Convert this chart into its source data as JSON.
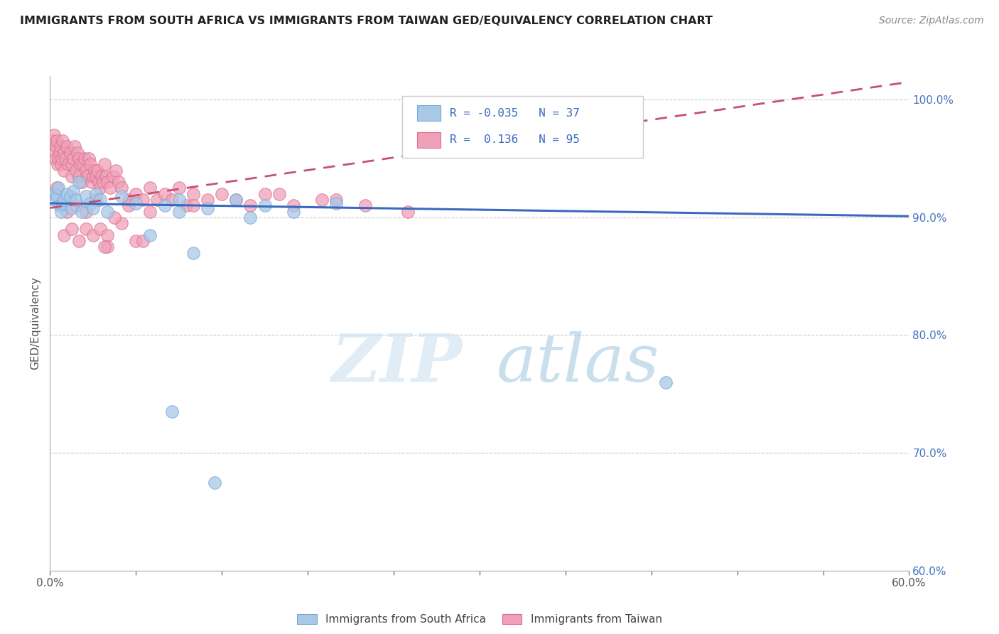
{
  "title": "IMMIGRANTS FROM SOUTH AFRICA VS IMMIGRANTS FROM TAIWAN GED/EQUIVALENCY CORRELATION CHART",
  "source": "Source: ZipAtlas.com",
  "ylabel": "GED/Equivalency",
  "xlim": [
    0.0,
    60.0
  ],
  "ylim": [
    60.0,
    102.0
  ],
  "xtick_positions": [
    0.0,
    6.0,
    12.0,
    18.0,
    24.0,
    30.0,
    36.0,
    42.0,
    48.0,
    54.0,
    60.0
  ],
  "xtick_labels": [
    "0.0%",
    "",
    "",
    "",
    "",
    "",
    "",
    "",
    "",
    "",
    "60.0%"
  ],
  "ytick_positions": [
    60.0,
    70.0,
    80.0,
    90.0,
    100.0
  ],
  "ytick_labels": [
    "60.0%",
    "70.0%",
    "80.0%",
    "90.0%",
    "100.0%"
  ],
  "series1_label": "Immigrants from South Africa",
  "series1_color": "#a8c8e8",
  "series1_edge_color": "#7aa8d0",
  "series1_R": -0.035,
  "series1_N": 37,
  "series1_line_color": "#3a6abf",
  "series2_label": "Immigrants from Taiwan",
  "series2_color": "#f0a0b8",
  "series2_edge_color": "#d87090",
  "series2_R": 0.136,
  "series2_N": 95,
  "series2_line_color": "#c85070",
  "watermark_zip": "ZIP",
  "watermark_atlas": "atlas",
  "background_color": "#ffffff",
  "sa_line_x0": 0.0,
  "sa_line_y0": 91.2,
  "sa_line_x1": 60.0,
  "sa_line_y1": 90.1,
  "tw_line_x0": 0.0,
  "tw_line_y0": 90.8,
  "tw_line_x1": 60.0,
  "tw_line_y1": 101.5,
  "south_africa_x": [
    0.3,
    0.4,
    0.5,
    0.6,
    0.7,
    0.8,
    0.9,
    1.0,
    1.2,
    1.4,
    1.5,
    1.6,
    1.8,
    2.0,
    2.2,
    2.5,
    2.8,
    3.0,
    3.2,
    3.5,
    4.0,
    5.0,
    6.0,
    7.0,
    8.0,
    9.0,
    11.0,
    13.0,
    15.0,
    17.0,
    20.0,
    10.0,
    14.0,
    9.0,
    43.0,
    8.5,
    11.5
  ],
  "south_africa_y": [
    91.5,
    92.0,
    91.8,
    92.5,
    91.0,
    90.5,
    91.2,
    91.5,
    92.0,
    91.8,
    90.8,
    92.2,
    91.5,
    93.0,
    90.5,
    91.8,
    91.2,
    90.8,
    92.0,
    91.5,
    90.5,
    91.8,
    91.2,
    88.5,
    91.0,
    90.5,
    90.8,
    91.5,
    91.0,
    90.5,
    91.2,
    87.0,
    90.0,
    91.5,
    76.0,
    73.5,
    67.5
  ],
  "taiwan_x": [
    0.2,
    0.3,
    0.35,
    0.4,
    0.45,
    0.5,
    0.55,
    0.6,
    0.7,
    0.75,
    0.8,
    0.85,
    0.9,
    1.0,
    1.0,
    1.1,
    1.2,
    1.3,
    1.4,
    1.5,
    1.5,
    1.6,
    1.7,
    1.8,
    1.9,
    2.0,
    2.0,
    2.1,
    2.2,
    2.3,
    2.4,
    2.5,
    2.6,
    2.7,
    2.8,
    2.9,
    3.0,
    3.1,
    3.2,
    3.3,
    3.4,
    3.5,
    3.6,
    3.7,
    3.8,
    3.9,
    4.0,
    4.2,
    4.4,
    4.6,
    4.8,
    5.0,
    5.5,
    6.0,
    6.5,
    7.0,
    7.5,
    8.0,
    8.5,
    9.0,
    9.5,
    10.0,
    11.0,
    12.0,
    13.0,
    14.0,
    15.0,
    17.0,
    19.0,
    22.0,
    25.0,
    1.0,
    1.5,
    2.0,
    2.5,
    3.0,
    3.5,
    4.0,
    5.0,
    6.0,
    0.5,
    0.8,
    1.2,
    1.8,
    2.5,
    3.2,
    4.5,
    5.5,
    7.0,
    10.0,
    16.0,
    20.0,
    4.0,
    6.5,
    3.8
  ],
  "taiwan_y": [
    96.5,
    97.0,
    95.5,
    95.0,
    96.0,
    96.5,
    94.5,
    95.0,
    95.5,
    96.0,
    94.5,
    95.0,
    96.5,
    94.0,
    95.5,
    95.0,
    96.0,
    94.5,
    95.5,
    93.5,
    94.5,
    95.0,
    96.0,
    94.0,
    95.5,
    93.5,
    95.0,
    94.5,
    93.0,
    94.5,
    95.0,
    94.0,
    93.5,
    95.0,
    94.5,
    93.0,
    93.5,
    94.0,
    93.5,
    94.0,
    93.0,
    92.5,
    93.5,
    93.0,
    94.5,
    93.5,
    93.0,
    92.5,
    93.5,
    94.0,
    93.0,
    92.5,
    91.5,
    92.0,
    91.5,
    92.5,
    91.5,
    92.0,
    91.5,
    92.5,
    91.0,
    92.0,
    91.5,
    92.0,
    91.5,
    91.0,
    92.0,
    91.0,
    91.5,
    91.0,
    90.5,
    88.5,
    89.0,
    88.0,
    89.0,
    88.5,
    89.0,
    88.5,
    89.5,
    88.0,
    92.5,
    91.0,
    90.5,
    91.0,
    90.5,
    91.5,
    90.0,
    91.0,
    90.5,
    91.0,
    92.0,
    91.5,
    87.5,
    88.0,
    87.5
  ]
}
